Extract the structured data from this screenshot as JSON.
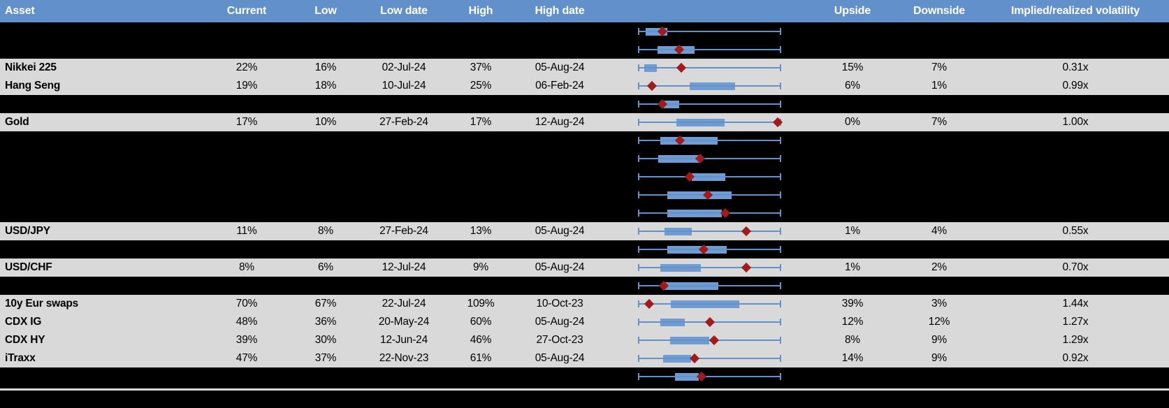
{
  "header": {
    "columns": {
      "asset": "Asset",
      "current": "Current",
      "low": "Low",
      "low_date": "Low date",
      "high": "High",
      "high_date": "High date",
      "upside": "Upside",
      "downside": "Downside",
      "vol": "Implied/realized volatility"
    }
  },
  "colors": {
    "header_bg": "#6290CB",
    "header_text": "#FFFFFF",
    "visible_row_bg": "#D9D9D9",
    "hidden_row_bg": "#000000",
    "box_fill": "#6F9DD3",
    "whisker_line": "#6391C9",
    "current_marker": "#9E1B1E",
    "separator_line": "#D9D9D9"
  },
  "chart_data": {
    "type": "table",
    "subtype": "table-with-row-boxplots",
    "legend_note": "Each row shows a range plot: whisker spans the full low-high range (0 to 1), blue box marks an inner range, red diamond marks the current level. Rows with hidden:true are blacked out and show only the plot.",
    "plot_range": [
      0,
      1
    ],
    "rows": [
      {
        "hidden": true,
        "box": [
          0.054,
          0.205
        ],
        "marker": 0.171
      },
      {
        "hidden": true,
        "box": [
          0.137,
          0.395
        ],
        "marker": 0.288
      },
      {
        "hidden": false,
        "asset": "Nikkei 225",
        "current": "22%",
        "low": "16%",
        "low_date": "02-Jul-24",
        "high": "37%",
        "high_date": "05-Aug-24",
        "upside": "15%",
        "downside": "7%",
        "vol": "0.31x",
        "box": [
          0.044,
          0.132
        ],
        "marker": 0.302
      },
      {
        "hidden": false,
        "asset": "Hang Seng",
        "current": "19%",
        "low": "18%",
        "low_date": "10-Jul-24",
        "high": "25%",
        "high_date": "06-Feb-24",
        "upside": "6%",
        "downside": "1%",
        "vol": "0.99x",
        "box": [
          0.361,
          0.678
        ],
        "marker": 0.098
      },
      {
        "hidden": true,
        "box": [
          0.18,
          0.288
        ],
        "marker": 0.171
      },
      {
        "hidden": false,
        "asset": "Gold",
        "current": "17%",
        "low": "10%",
        "low_date": "27-Feb-24",
        "high": "17%",
        "high_date": "12-Aug-24",
        "upside": "0%",
        "downside": "7%",
        "vol": "1.00x",
        "box": [
          0.268,
          0.605
        ],
        "marker": 0.976
      },
      {
        "hidden": true,
        "box": [
          0.156,
          0.556
        ],
        "marker": 0.293
      },
      {
        "hidden": true,
        "box": [
          0.141,
          0.434
        ],
        "marker": 0.434
      },
      {
        "hidden": true,
        "box": [
          0.376,
          0.61
        ],
        "marker": 0.361
      },
      {
        "hidden": true,
        "box": [
          0.205,
          0.654
        ],
        "marker": 0.488
      },
      {
        "hidden": true,
        "box": [
          0.205,
          0.585
        ],
        "marker": 0.61
      },
      {
        "hidden": false,
        "asset": "USD/JPY",
        "current": "11%",
        "low": "8%",
        "low_date": "27-Feb-24",
        "high": "13%",
        "high_date": "05-Aug-24",
        "upside": "1%",
        "downside": "4%",
        "vol": "0.55x",
        "box": [
          0.185,
          0.376
        ],
        "marker": 0.756
      },
      {
        "hidden": true,
        "box": [
          0.205,
          0.62
        ],
        "marker": 0.459
      },
      {
        "hidden": false,
        "asset": "USD/CHF",
        "current": "8%",
        "low": "6%",
        "low_date": "12-Jul-24",
        "high": "9%",
        "high_date": "05-Aug-24",
        "upside": "1%",
        "downside": "2%",
        "vol": "0.70x",
        "box": [
          0.156,
          0.439
        ],
        "marker": 0.756
      },
      {
        "hidden": true,
        "box": [
          0.171,
          0.561
        ],
        "marker": 0.18
      },
      {
        "hidden": false,
        "asset": "10y Eur swaps",
        "current": "70%",
        "low": "67%",
        "low_date": "22-Jul-24",
        "high": "109%",
        "high_date": "10-Oct-23",
        "upside": "39%",
        "downside": "3%",
        "vol": "1.44x",
        "box": [
          0.229,
          0.707
        ],
        "marker": 0.078
      },
      {
        "hidden": false,
        "asset": "CDX IG",
        "current": "48%",
        "low": "36%",
        "low_date": "20-May-24",
        "high": "60%",
        "high_date": "05-Aug-24",
        "upside": "12%",
        "downside": "12%",
        "vol": "1.27x",
        "box": [
          0.156,
          0.327
        ],
        "marker": 0.502
      },
      {
        "hidden": false,
        "asset": "CDX HY",
        "current": "39%",
        "low": "30%",
        "low_date": "12-Jun-24",
        "high": "46%",
        "high_date": "27-Oct-23",
        "upside": "8%",
        "downside": "9%",
        "vol": "1.29x",
        "box": [
          0.224,
          0.498
        ],
        "marker": 0.532
      },
      {
        "hidden": false,
        "asset": "iTraxx",
        "current": "47%",
        "low": "37%",
        "low_date": "22-Nov-23",
        "high": "61%",
        "high_date": "05-Aug-24",
        "upside": "14%",
        "downside": "9%",
        "vol": "0.92x",
        "box": [
          0.176,
          0.371
        ],
        "marker": 0.395
      },
      {
        "hidden": true,
        "box": [
          0.259,
          0.424
        ],
        "marker": 0.444
      }
    ]
  }
}
